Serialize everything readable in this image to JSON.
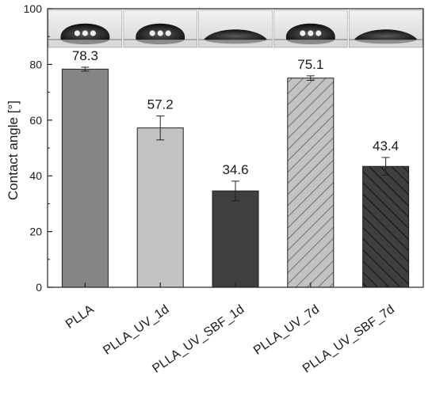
{
  "chart_data": {
    "type": "bar",
    "title": "",
    "xlabel": "",
    "ylabel": "Contact angle [°]",
    "ylim": [
      0,
      100
    ],
    "yticks": [
      0,
      20,
      40,
      60,
      80,
      100
    ],
    "grid": false,
    "categories": [
      "PLLA",
      "PLLA_UV_1d",
      "PLLA_UV_SBF_1d",
      "PLLA_UV_7d",
      "PLLA_UV_SBF_7d"
    ],
    "values": [
      78.3,
      57.2,
      34.6,
      75.1,
      43.4
    ],
    "errors": [
      0.7,
      4.3,
      3.5,
      0.8,
      3.2
    ],
    "value_labels": [
      "78.3",
      "57.2",
      "34.6",
      "75.1",
      "43.4"
    ],
    "bar_styles": [
      {
        "fill": "#858585",
        "pattern": "solid"
      },
      {
        "fill": "#c3c3c3",
        "pattern": "solid"
      },
      {
        "fill": "#3f3f3f",
        "pattern": "solid"
      },
      {
        "fill": "#c3c3c3",
        "pattern": "hatched"
      },
      {
        "fill": "#3f3f3f",
        "pattern": "hatched"
      }
    ],
    "droplet_images": [
      {
        "shape": "sessile-drop-high",
        "category": "PLLA"
      },
      {
        "shape": "sessile-drop-high",
        "category": "PLLA_UV_1d"
      },
      {
        "shape": "sessile-drop-flat",
        "category": "PLLA_UV_SBF_1d"
      },
      {
        "shape": "sessile-drop-high",
        "category": "PLLA_UV_7d"
      },
      {
        "shape": "sessile-drop-flat",
        "category": "PLLA_UV_SBF_7d"
      }
    ]
  }
}
